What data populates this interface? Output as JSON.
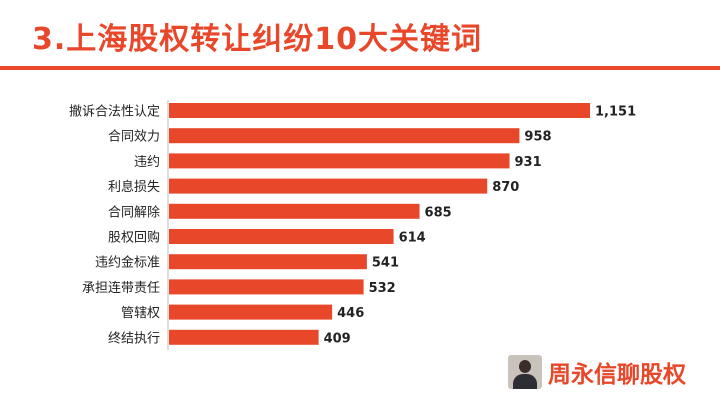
{
  "slide": {
    "title": "3.上海股权转让纠纷10大关键词",
    "brand_name": "周永信聊股权",
    "accent_color": "#e8472a"
  },
  "chart_data": {
    "type": "bar",
    "orientation": "horizontal",
    "categories": [
      "撤诉合法性认定",
      "合同效力",
      "违约",
      "利息损失",
      "合同解除",
      "股权回购",
      "违约金标准",
      "承担连带责任",
      "管辖权",
      "终结执行"
    ],
    "values": [
      1151,
      958,
      931,
      870,
      685,
      614,
      541,
      532,
      446,
      409
    ],
    "value_labels": [
      "1,151",
      "958",
      "931",
      "870",
      "685",
      "614",
      "541",
      "532",
      "446",
      "409"
    ],
    "bar_color": "#e8472a",
    "grid": false,
    "legend": "none"
  }
}
